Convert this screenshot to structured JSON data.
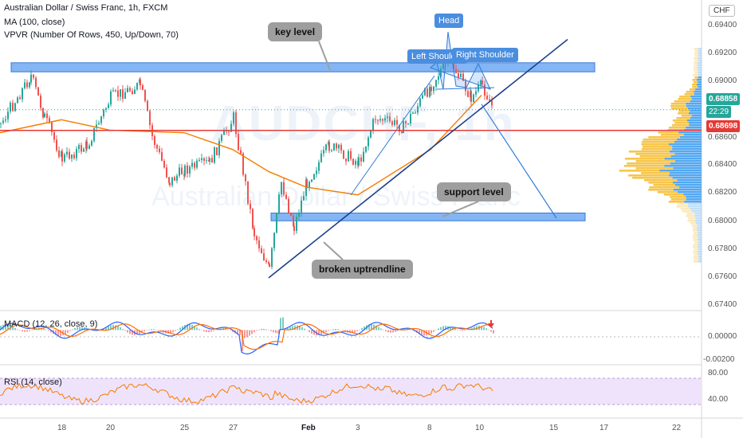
{
  "header": {
    "title": "Australian Dollar / Swiss Franc, 1h, FXCM",
    "ma_label": "MA (100, close)",
    "vpvr_label": "VPVR (Number Of Rows, 450, Up/Down, 70)"
  },
  "watermark": {
    "symbol": "AUDCHF, 1h",
    "name": "Australian Dollar / Swiss Franc"
  },
  "currency_button": "CHF",
  "annotations": {
    "key_level": "key level",
    "head": "Head",
    "left_shoulder": "Left Shoulder",
    "right_shoulder": "Right Shoulder",
    "support_level": "support level",
    "broken_uptrendline": "broken uptrendline"
  },
  "price_axis": {
    "ticks": [
      "0.69400",
      "0.69200",
      "0.69000",
      "0.68600",
      "0.68400",
      "0.68200",
      "0.68000",
      "0.67800",
      "0.67600",
      "0.67400"
    ],
    "current_price": "0.68858",
    "countdown": "22:29",
    "red_line_price": "0.68698",
    "red_line_color": "#e53935"
  },
  "time_axis": {
    "ticks": [
      "18",
      "20",
      "25",
      "27",
      "Feb",
      "3",
      "8",
      "10",
      "15",
      "17",
      "22"
    ]
  },
  "macd": {
    "label": "MACD (12, 26, close, 9)",
    "ticks": [
      "0.00000",
      "-0.00200"
    ]
  },
  "rsi": {
    "label": "RSI (14, close)",
    "ticks": [
      "80.00",
      "40.00"
    ]
  },
  "colors": {
    "up_candle": "#26a69a",
    "down_candle": "#ef5350",
    "ma": "#f57c00",
    "zone": "#5b9cf0",
    "trendline": "#1c3f8c",
    "vp_up": "#f5c242",
    "vp_down": "#4aa3f0",
    "rsi_line": "#f57c00",
    "macd_line": "#2962ff",
    "signal_line": "#ff6d00"
  },
  "chart_data": {
    "type": "candlestick",
    "symbol": "AUDCHF",
    "timeframe": "1h",
    "title": "Australian Dollar / Swiss Franc, 1h, FXCM",
    "ylim": [
      0.6735,
      0.6952
    ],
    "close_path": [
      {
        "x": "start",
        "y": 0.6875
      },
      {
        "x": "16",
        "y": 0.6912
      },
      {
        "x": "17",
        "y": 0.688
      },
      {
        "x": "18",
        "y": 0.6848
      },
      {
        "x": "19",
        "y": 0.6858
      },
      {
        "x": "20",
        "y": 0.6895
      },
      {
        "x": "21",
        "y": 0.6905
      },
      {
        "x": "22",
        "y": 0.6865
      },
      {
        "x": "24",
        "y": 0.683
      },
      {
        "x": "25",
        "y": 0.684
      },
      {
        "x": "26",
        "y": 0.6845
      },
      {
        "x": "27",
        "y": 0.688
      },
      {
        "x": "28",
        "y": 0.679
      },
      {
        "x": "29",
        "y": 0.6762
      },
      {
        "x": "30",
        "y": 0.683
      },
      {
        "x": "31",
        "y": 0.6795
      },
      {
        "x": "Feb",
        "y": 0.683
      },
      {
        "x": "2",
        "y": 0.6858
      },
      {
        "x": "3",
        "y": 0.6845
      },
      {
        "x": "4",
        "y": 0.688
      },
      {
        "x": "5",
        "y": 0.6872
      },
      {
        "x": "8",
        "y": 0.6905
      },
      {
        "x": "9",
        "y": 0.6925
      },
      {
        "x": "9b",
        "y": 0.6895
      },
      {
        "x": "10",
        "y": 0.6905
      },
      {
        "x": "10b",
        "y": 0.6886
      }
    ],
    "ma100": [
      {
        "x": "start",
        "y": 0.6868
      },
      {
        "x": "18",
        "y": 0.6878
      },
      {
        "x": "20",
        "y": 0.687
      },
      {
        "x": "25",
        "y": 0.6868
      },
      {
        "x": "27",
        "y": 0.6855
      },
      {
        "x": "29",
        "y": 0.6838
      },
      {
        "x": "Feb",
        "y": 0.6826
      },
      {
        "x": "3",
        "y": 0.682
      },
      {
        "x": "8",
        "y": 0.6855
      },
      {
        "x": "10",
        "y": 0.6897
      }
    ],
    "levels": {
      "key_level_zone": [
        0.6915,
        0.6922
      ],
      "support_zone": [
        0.68,
        0.6806
      ],
      "red_line": 0.68698,
      "current": 0.68858
    },
    "uptrendline": {
      "from": {
        "x": "29",
        "y": 0.6756
      },
      "to": {
        "x": "15",
        "y": 0.694
      }
    },
    "projection": {
      "from": {
        "x": "10",
        "y": 0.689
      },
      "to": {
        "x": "15",
        "y": 0.6802
      }
    },
    "macd_ylim": [
      -0.0025,
      0.0012
    ],
    "rsi_ylim": [
      20,
      90
    ]
  }
}
